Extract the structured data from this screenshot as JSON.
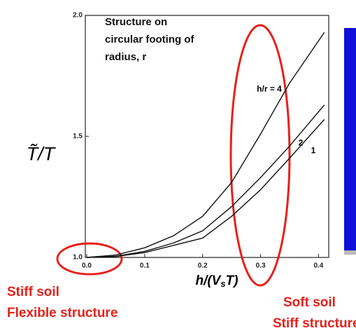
{
  "chart_data": {
    "type": "line",
    "annotation": [
      "Structure on",
      "circular footing of",
      "radius, r"
    ],
    "ylabel": "T̃/T",
    "xlabel_parts": [
      "h/(V",
      "s",
      "T)"
    ],
    "x": [
      0,
      0.05,
      0.1,
      0.15,
      0.2,
      0.25,
      0.3,
      0.35,
      0.41
    ],
    "series": [
      {
        "name": "h/r = 4",
        "color": "#111111",
        "values": [
          1,
          1.01,
          1.04,
          1.09,
          1.17,
          1.31,
          1.51,
          1.72,
          1.93
        ]
      },
      {
        "name": "2",
        "color": "#111111",
        "values": [
          1,
          1.005,
          1.025,
          1.06,
          1.11,
          1.21,
          1.33,
          1.46,
          1.63
        ]
      },
      {
        "name": "1",
        "color": "#111111",
        "values": [
          1,
          1.004,
          1.02,
          1.05,
          1.08,
          1.17,
          1.28,
          1.41,
          1.57
        ]
      }
    ],
    "xlim": [
      0,
      0.42
    ],
    "ylim": [
      1,
      2
    ],
    "xticks": [
      {
        "value": 0,
        "label": "0.0"
      },
      0.1,
      0.2,
      0.3,
      0.4
    ],
    "yticks": [
      {
        "value": 1,
        "label": "1.0"
      },
      1.5,
      {
        "value": 2,
        "label": "2.0"
      }
    ],
    "notes": [
      "Stiff soil",
      "Flexible structure",
      "Soft soil",
      "Stiff structure"
    ]
  }
}
